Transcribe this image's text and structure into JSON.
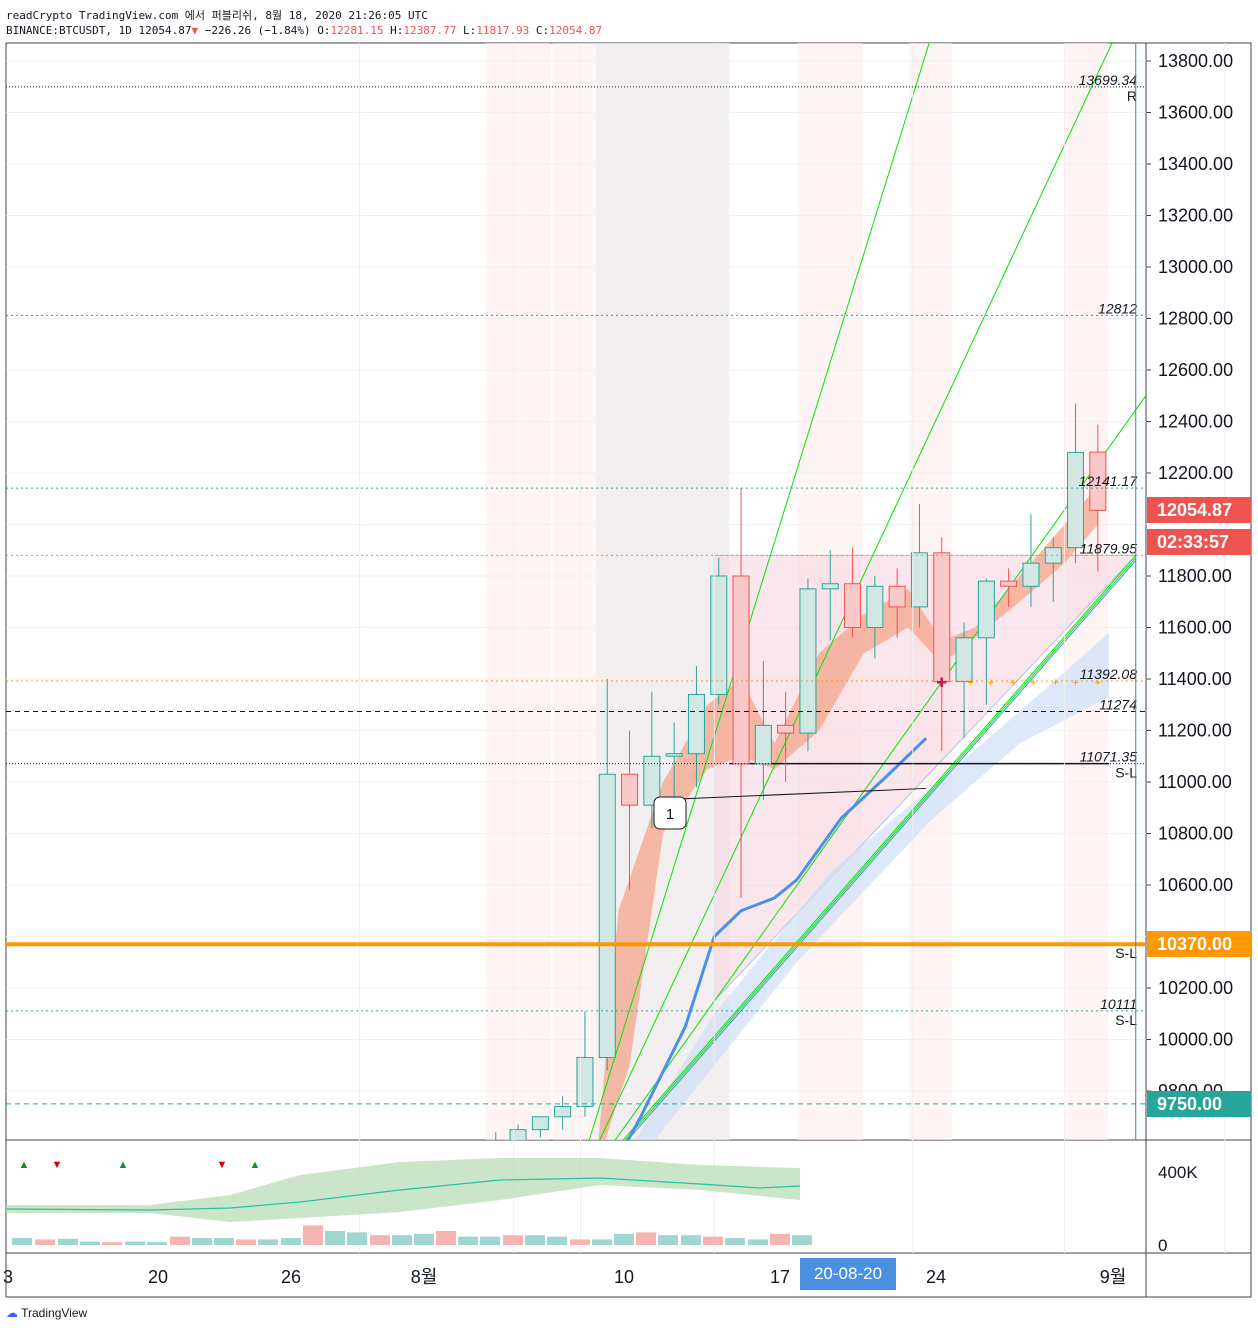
{
  "header": {
    "line1": "readCrypto TradingView.com 에서 퍼블리쉬, 8월 18, 2020 21:26:05 UTC",
    "symbol": "BINANCE:BTCUSDT, 1D",
    "last": "12054.87",
    "change": "−226.26 (−1.84%)",
    "o_label": "O:",
    "o": "12281.15",
    "h_label": "H:",
    "h": "12387.77",
    "l_label": "L:",
    "l": "11817.93",
    "c_label": "C:",
    "c": "12054.87"
  },
  "brand": "TradingView",
  "colors": {
    "up": "#26a69a",
    "down": "#ef5350",
    "bar_up_fill": "#d1e7e4",
    "bar_down_fill": "#f8c9c8",
    "orange": "#ff9800",
    "green_line": "#00e600",
    "blue_ma": "#4a8fe8"
  },
  "chart_data": {
    "type": "candlestick",
    "x_ticks": [
      "3",
      "20",
      "26",
      "8월",
      "10",
      "17",
      "24",
      "9월"
    ],
    "y_ticks": [
      "13800.00",
      "13600.00",
      "13400.00",
      "13200.00",
      "13000.00",
      "12800.00",
      "12600.00",
      "12400.00",
      "12200.00",
      "11800.00",
      "11600.00",
      "11400.00",
      "11200.00",
      "11000.00",
      "10800.00",
      "10600.00",
      "10200.00",
      "10000.00",
      "9800.00"
    ],
    "ylim": [
      9640,
      13890
    ],
    "candles": [
      {
        "x": 22.5,
        "o": 9540,
        "h": 9640,
        "c": 9560,
        "l": 9500
      },
      {
        "x": 23.5,
        "o": 9560,
        "h": 9670,
        "c": 9650,
        "l": 9520
      },
      {
        "x": 24.5,
        "o": 9650,
        "h": 9700,
        "c": 9700,
        "l": 9620
      },
      {
        "x": 25.5,
        "o": 9700,
        "h": 9780,
        "c": 9740,
        "l": 9650
      },
      {
        "x": 26.5,
        "o": 9740,
        "h": 10110,
        "c": 9930,
        "l": 9700
      },
      {
        "x": 27.5,
        "o": 9930,
        "h": 11400,
        "c": 11030,
        "l": 9880
      },
      {
        "x": 28.5,
        "o": 11030,
        "h": 11200,
        "c": 10910,
        "l": 10580
      },
      {
        "x": 29.5,
        "o": 10910,
        "h": 11350,
        "c": 11100,
        "l": 10820
      },
      {
        "x": 30.5,
        "o": 11100,
        "h": 11230,
        "c": 11110,
        "l": 10870
      },
      {
        "x": 31.5,
        "o": 11110,
        "h": 11450,
        "c": 11340,
        "l": 10980
      },
      {
        "x": 32.5,
        "o": 11340,
        "h": 11870,
        "c": 11800,
        "l": 11300
      },
      {
        "x": 33.5,
        "o": 11800,
        "h": 12140,
        "c": 11070,
        "l": 10550
      },
      {
        "x": 34.5,
        "o": 11070,
        "h": 11470,
        "c": 11220,
        "l": 10930
      },
      {
        "x": 35.5,
        "o": 11220,
        "h": 11350,
        "c": 11190,
        "l": 11000
      },
      {
        "x": 36.5,
        "o": 11190,
        "h": 11790,
        "c": 11750,
        "l": 11120
      },
      {
        "x": 37.5,
        "o": 11750,
        "h": 11900,
        "c": 11770,
        "l": 11550
      },
      {
        "x": 38.5,
        "o": 11770,
        "h": 11910,
        "c": 11600,
        "l": 11560
      },
      {
        "x": 39.5,
        "o": 11600,
        "h": 11800,
        "c": 11760,
        "l": 11480
      },
      {
        "x": 40.5,
        "o": 11760,
        "h": 11830,
        "c": 11680,
        "l": 11560
      },
      {
        "x": 41.5,
        "o": 11680,
        "h": 12080,
        "c": 11890,
        "l": 11600
      },
      {
        "x": 42.5,
        "o": 11890,
        "h": 11950,
        "c": 11390,
        "l": 11120
      },
      {
        "x": 43.5,
        "o": 11390,
        "h": 11620,
        "c": 11560,
        "l": 11170
      },
      {
        "x": 44.5,
        "o": 11560,
        "h": 11790,
        "c": 11780,
        "l": 11300
      },
      {
        "x": 45.5,
        "o": 11780,
        "h": 11830,
        "c": 11760,
        "l": 11680
      },
      {
        "x": 46.5,
        "o": 11760,
        "h": 12040,
        "c": 11850,
        "l": 11680
      },
      {
        "x": 47.5,
        "o": 11850,
        "h": 11950,
        "c": 11910,
        "l": 11700
      },
      {
        "x": 48.5,
        "o": 11910,
        "h": 12470,
        "c": 12280,
        "l": 11850
      },
      {
        "x": 49.5,
        "o": 12281.15,
        "h": 12387.77,
        "c": 12054.87,
        "l": 11817.93
      }
    ],
    "horizontal_levels": [
      {
        "price": 13699.34,
        "label": "13699.34",
        "sub": "R",
        "style": "dotted-black"
      },
      {
        "price": 12812,
        "label": "12812",
        "style": "dotted-teal"
      },
      {
        "price": 12141.17,
        "label": "12141.17",
        "style": "dotted-teal"
      },
      {
        "price": 11879.95,
        "label": "11879.95",
        "style": "dotted-orange"
      },
      {
        "price": 11392.08,
        "label": "11392.08",
        "style": "dotted-orange"
      },
      {
        "price": 11274,
        "label": "11274",
        "style": "dashed-black"
      },
      {
        "price": 11071.35,
        "label": "11071.35",
        "sub": "S-L",
        "style": "dotted-black"
      },
      {
        "price": 10370,
        "label": "",
        "sub": "S-L",
        "style": "solid-orange"
      },
      {
        "price": 10111,
        "label": "10111",
        "sub": "S-L",
        "style": "dotted-teal"
      },
      {
        "price": 9750,
        "label": "",
        "style": "dashed-teal"
      }
    ],
    "price_tags": [
      {
        "price": 12054.87,
        "text": "12054.87",
        "color": "#ef5350"
      },
      {
        "price": 10370,
        "text": "10370.00",
        "color": "#ff9800"
      },
      {
        "price": 9750,
        "text": "9750.00",
        "color": "#26a69a"
      }
    ],
    "countdown": "02:33:57",
    "callout": "1",
    "date_tag": "20-08-20",
    "volume_axis": [
      "400K",
      "0"
    ],
    "volume_markers": [
      {
        "x": 19.0,
        "dir": "up"
      },
      {
        "x": 20.0,
        "dir": "down"
      },
      {
        "x": 22.0,
        "dir": "up"
      },
      {
        "x": 25.0,
        "dir": "down"
      },
      {
        "x": 26.0,
        "dir": "up"
      }
    ]
  }
}
